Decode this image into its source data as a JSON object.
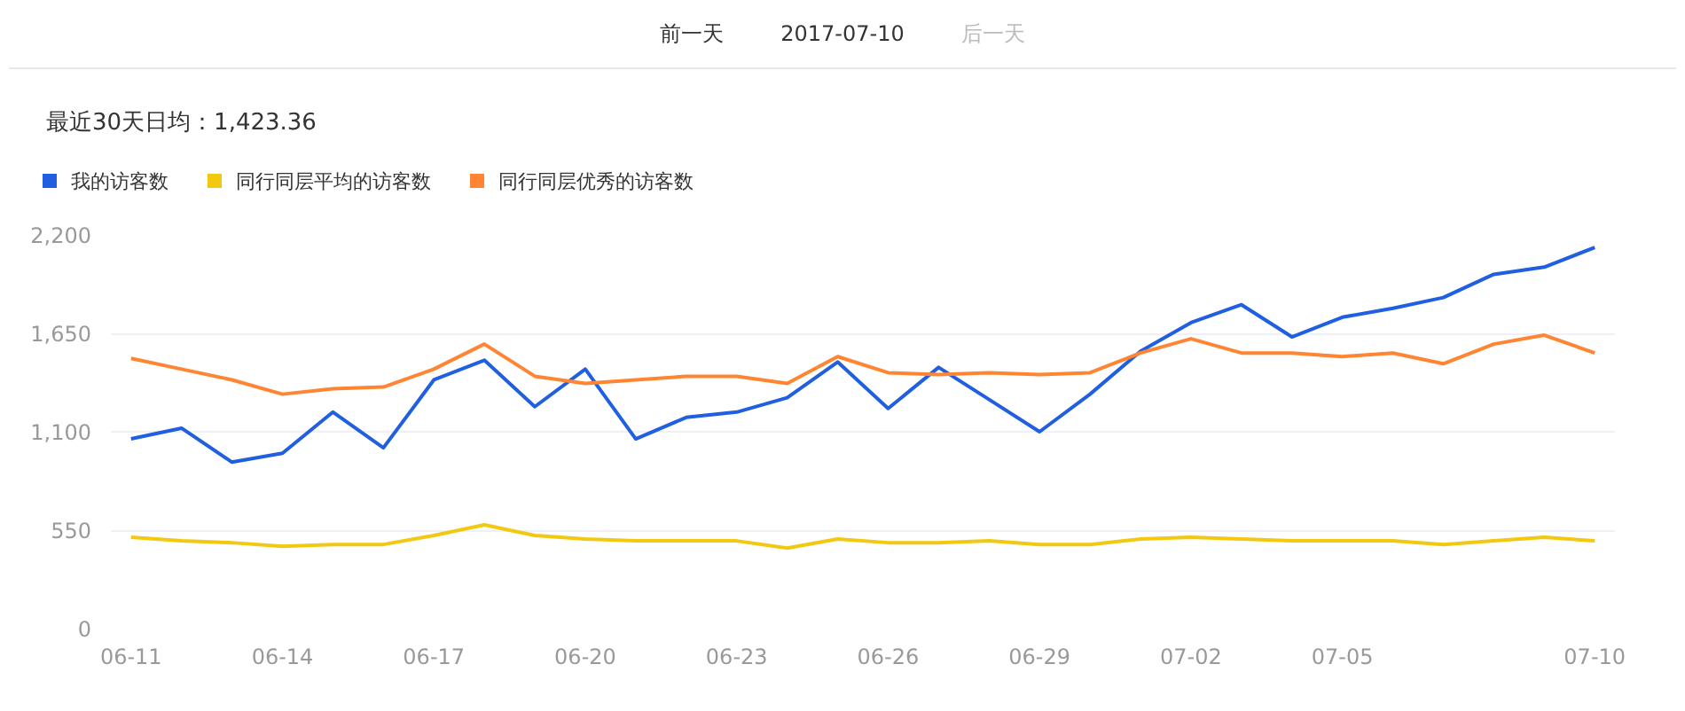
{
  "chart_data": {
    "type": "line",
    "title": "最近30天日均：1,423.36",
    "annotations": [
      "前一天",
      "2017-07-10",
      "后一天"
    ],
    "categories": [
      "06-11",
      null,
      null,
      "06-14",
      null,
      null,
      "06-17",
      null,
      null,
      "06-20",
      null,
      null,
      "06-23",
      null,
      null,
      "06-26",
      null,
      null,
      "06-29",
      null,
      null,
      "07-02",
      null,
      null,
      "07-05",
      null,
      null,
      null,
      null,
      "07-10"
    ],
    "series": [
      {
        "name": "我的访客数",
        "color": "#1f5fe0",
        "values": [
          1060,
          1120,
          930,
          980,
          1210,
          1010,
          1390,
          1500,
          1240,
          1450,
          1060,
          1180,
          1210,
          1290,
          1490,
          1230,
          1460,
          1280,
          1100,
          1310,
          1550,
          1710,
          1810,
          1630,
          1740,
          1790,
          1850,
          1980,
          2020,
          2130
        ]
      },
      {
        "name": "同行同层平均的访客数",
        "color": "#f2c811",
        "values": [
          510,
          490,
          480,
          460,
          470,
          470,
          520,
          580,
          520,
          500,
          490,
          490,
          490,
          450,
          500,
          480,
          480,
          490,
          470,
          470,
          500,
          510,
          500,
          490,
          490,
          490,
          470,
          490,
          510,
          490
        ]
      },
      {
        "name": "同行同层优秀的访客数",
        "color": "#ff8533",
        "values": [
          1510,
          1450,
          1390,
          1310,
          1340,
          1350,
          1450,
          1590,
          1410,
          1370,
          1390,
          1410,
          1410,
          1370,
          1520,
          1430,
          1420,
          1430,
          1420,
          1430,
          1540,
          1620,
          1540,
          1540,
          1520,
          1540,
          1480,
          1590,
          1640,
          1540
        ]
      }
    ],
    "ylim": [
      0,
      2200
    ],
    "yticks": [
      0,
      {
        "value": 550,
        "label": "550"
      },
      {
        "value": 1100,
        "label": "1,100"
      },
      {
        "value": 1650,
        "label": "1,650"
      },
      {
        "value": 2200,
        "label": "2,200"
      }
    ],
    "grid": "y",
    "legend": "top left",
    "marker": "none",
    "line_style": "solid"
  }
}
